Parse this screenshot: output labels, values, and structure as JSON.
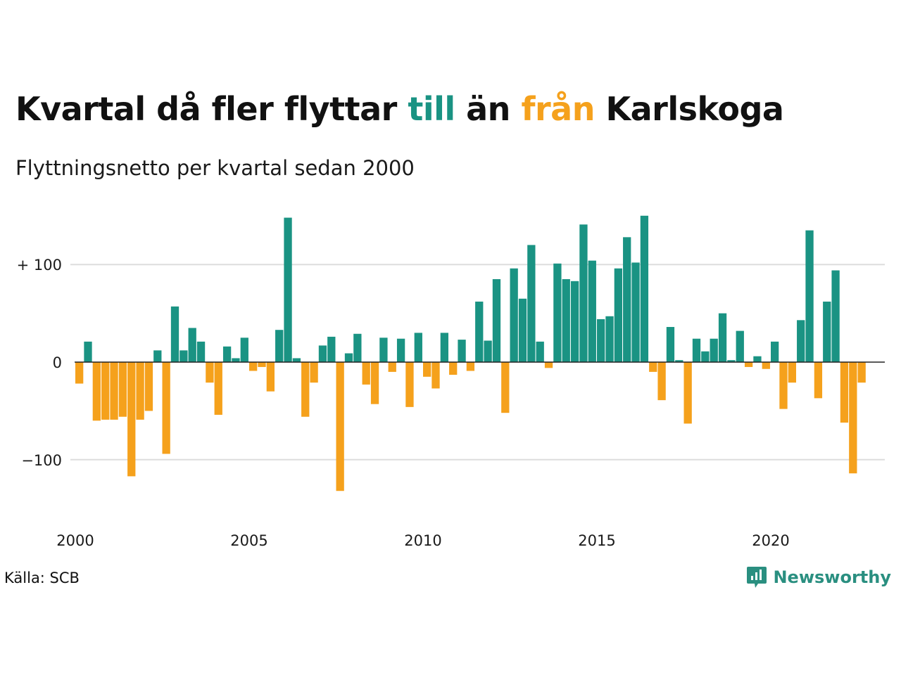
{
  "title": {
    "part1": "Kvartal då fler flyttar ",
    "in_word": "till",
    "part2": " än ",
    "out_word": "från",
    "part3": " Karlskoga"
  },
  "subtitle": "Flyttningsnetto per kvartal sedan 2000",
  "source": "Källa: SCB",
  "logo_text": "Newsworthy",
  "colors": {
    "positive": "#1a9383",
    "negative": "#f5a11c",
    "brand": "#2a8f80",
    "grid": "#dddddd"
  },
  "chart_data": {
    "type": "bar",
    "title": "Kvartal då fler flyttar till än från Karlskoga",
    "subtitle": "Flyttningsnetto per kvartal sedan 2000",
    "x_start": "2000 Q1",
    "quarters_per_year": 4,
    "xticks": [
      "2000",
      "2005",
      "2010",
      "2015",
      "2020"
    ],
    "yticks": [
      {
        "value": 100,
        "label": "+ 100"
      },
      {
        "value": 0,
        "label": "0"
      },
      {
        "value": -100,
        "label": "−100"
      }
    ],
    "ylim": [
      -160,
      155
    ],
    "values": [
      -22,
      21,
      -60,
      -59,
      -59,
      -56,
      -117,
      -59,
      -50,
      12,
      -94,
      57,
      12,
      35,
      21,
      -21,
      -54,
      16,
      4,
      25,
      -9,
      -5,
      -30,
      33,
      148,
      4,
      -56,
      -21,
      17,
      26,
      -132,
      9,
      29,
      -23,
      -43,
      25,
      -10,
      24,
      -46,
      30,
      -15,
      -27,
      30,
      -13,
      23,
      -9,
      62,
      22,
      85,
      -52,
      96,
      65,
      120,
      21,
      -6,
      101,
      85,
      83,
      141,
      104,
      44,
      47,
      96,
      128,
      102,
      150,
      -10,
      -39,
      36,
      2,
      -63,
      24,
      11,
      24,
      50,
      2,
      32,
      -5,
      6,
      -7,
      21,
      -48,
      -21,
      43,
      135,
      -37,
      62,
      94,
      -62,
      -114,
      -21
    ],
    "grid": true,
    "legend": "none"
  }
}
